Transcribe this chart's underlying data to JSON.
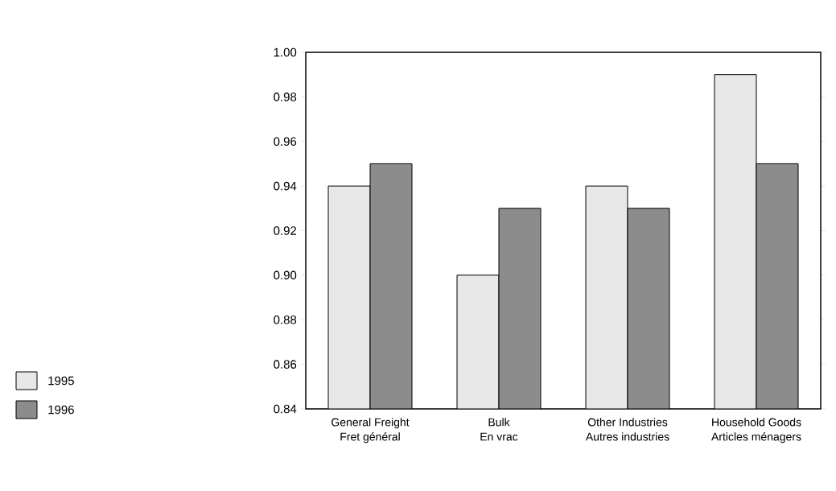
{
  "chart_data": {
    "type": "bar",
    "categories": [
      "General Freight\nFret général",
      "Bulk\nEn vrac",
      "Other Industries\nAutres industries",
      "Household Goods\nArticles ménagers"
    ],
    "series": [
      {
        "name": "1995",
        "color": "#e8e8e8",
        "values": [
          0.94,
          0.9,
          0.94,
          0.99
        ]
      },
      {
        "name": "1996",
        "color": "#8c8c8c",
        "values": [
          0.95,
          0.93,
          0.93,
          0.95
        ]
      }
    ],
    "ylim": [
      0.84,
      1.0
    ],
    "yticks": [
      {
        "value": 0.84,
        "label": "0.84"
      },
      {
        "value": 0.86,
        "label": "0.86"
      },
      {
        "value": 0.88,
        "label": "0.88"
      },
      {
        "value": 0.9,
        "label": "0.90"
      },
      {
        "value": 0.92,
        "label": "0.92"
      },
      {
        "value": 0.94,
        "label": "0.94"
      },
      {
        "value": 0.96,
        "label": "0.96"
      },
      {
        "value": 0.98,
        "label": "0.98"
      },
      {
        "value": 1.0,
        "label": "1.00"
      }
    ],
    "grid": false,
    "legend": "left"
  }
}
